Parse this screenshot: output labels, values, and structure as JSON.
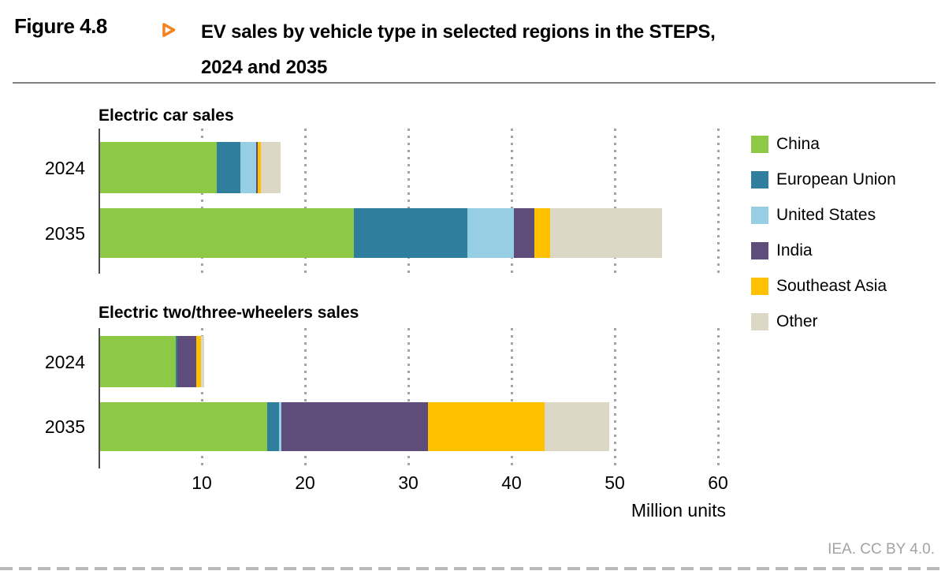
{
  "header": {
    "figure_label": "Figure 4.8",
    "title_line1": "EV sales by vehicle type in selected regions in the STEPS,",
    "title_line2": "2024 and 2035",
    "accent_color": "#F58220"
  },
  "legend": {
    "position": "right",
    "items": [
      {
        "label": "China",
        "color": "#8DC945"
      },
      {
        "label": "European Union",
        "color": "#2F7E9E"
      },
      {
        "label": "United States",
        "color": "#96CEE4"
      },
      {
        "label": "India",
        "color": "#5E4C7B"
      },
      {
        "label": "Southeast Asia",
        "color": "#FFC000"
      },
      {
        "label": "Other",
        "color": "#DCD8C5"
      }
    ]
  },
  "chart_data": [
    {
      "type": "bar",
      "orientation": "horizontal-stacked",
      "title": "Electric car sales",
      "categories": [
        "2024",
        "2035"
      ],
      "series": [
        {
          "name": "China",
          "values": [
            11.3,
            24.6
          ]
        },
        {
          "name": "European Union",
          "values": [
            2.3,
            11.0
          ]
        },
        {
          "name": "United States",
          "values": [
            1.5,
            4.5
          ]
        },
        {
          "name": "India",
          "values": [
            0.15,
            2.0
          ]
        },
        {
          "name": "Southeast Asia",
          "values": [
            0.3,
            1.5
          ]
        },
        {
          "name": "Other",
          "values": [
            1.9,
            10.8
          ]
        }
      ],
      "xlim": [
        0,
        60
      ],
      "xticks": [
        10,
        20,
        30,
        40,
        50,
        60
      ],
      "grid": "dotted-vertical"
    },
    {
      "type": "bar",
      "orientation": "horizontal-stacked",
      "title": "Electric two/three-wheelers sales",
      "categories": [
        "2024",
        "2035"
      ],
      "series": [
        {
          "name": "China",
          "values": [
            7.3,
            16.2
          ]
        },
        {
          "name": "European Union",
          "values": [
            0.2,
            1.1
          ]
        },
        {
          "name": "United States",
          "values": [
            0.0,
            0.25
          ]
        },
        {
          "name": "India",
          "values": [
            1.8,
            14.2
          ]
        },
        {
          "name": "Southeast Asia",
          "values": [
            0.5,
            11.3
          ]
        },
        {
          "name": "Other",
          "values": [
            0.3,
            6.3
          ]
        }
      ],
      "xlim": [
        0,
        60
      ],
      "xticks": [
        10,
        20,
        30,
        40,
        50,
        60
      ],
      "grid": "dotted-vertical"
    }
  ],
  "axis": {
    "unit_label": "Million units"
  },
  "footer": {
    "attribution": "IEA. CC BY 4.0."
  }
}
